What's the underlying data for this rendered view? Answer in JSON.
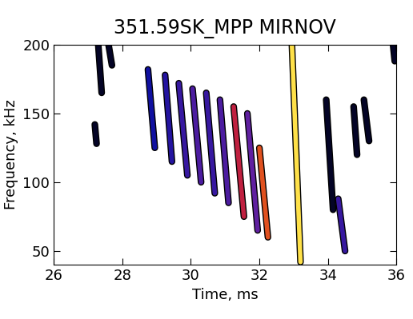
{
  "chart_data": {
    "type": "spectrogram",
    "title": "351.59SK_MPP MIRNOV",
    "x_label": "Time, ms",
    "y_label": "Frequency, kHz",
    "xlim": [
      26,
      36
    ],
    "xticks": [
      26,
      28,
      30,
      32,
      34,
      36
    ],
    "ylim": [
      40,
      200
    ],
    "yticks": [
      50,
      100,
      150,
      200
    ],
    "amplitude_range": [
      0,
      1
    ],
    "chirps": [
      {
        "time": [
          27.2,
          27.25
        ],
        "frequency": [
          142,
          128
        ],
        "amplitude": 0.05
      },
      {
        "time": [
          27.3,
          27.4
        ],
        "frequency": [
          200,
          165
        ],
        "amplitude": 0.05
      },
      {
        "time": [
          27.6,
          27.7
        ],
        "frequency": [
          200,
          185
        ],
        "amplitude": 0.05
      },
      {
        "time": [
          28.75,
          28.95
        ],
        "frequency": [
          182,
          125
        ],
        "amplitude": 0.2
      },
      {
        "time": [
          29.25,
          29.45
        ],
        "frequency": [
          178,
          115
        ],
        "amplitude": 0.25
      },
      {
        "time": [
          29.65,
          29.9
        ],
        "frequency": [
          172,
          105
        ],
        "amplitude": 0.3
      },
      {
        "time": [
          30.05,
          30.3
        ],
        "frequency": [
          168,
          100
        ],
        "amplitude": 0.35
      },
      {
        "time": [
          30.45,
          30.7
        ],
        "frequency": [
          165,
          92
        ],
        "amplitude": 0.3
      },
      {
        "time": [
          30.85,
          31.1
        ],
        "frequency": [
          160,
          85
        ],
        "amplitude": 0.35
      },
      {
        "time": [
          31.25,
          31.55
        ],
        "frequency": [
          155,
          75
        ],
        "amplitude": 0.6
      },
      {
        "time": [
          31.65,
          31.95
        ],
        "frequency": [
          150,
          65
        ],
        "amplitude": 0.4
      },
      {
        "time": [
          32.0,
          32.25
        ],
        "frequency": [
          125,
          60
        ],
        "amplitude": 0.7
      },
      {
        "time": [
          32.95,
          33.2
        ],
        "frequency": [
          200,
          42
        ],
        "amplitude": 0.95
      },
      {
        "time": [
          33.95,
          34.15
        ],
        "frequency": [
          160,
          80
        ],
        "amplitude": 0.05
      },
      {
        "time": [
          34.3,
          34.5
        ],
        "frequency": [
          88,
          50
        ],
        "amplitude": 0.3
      },
      {
        "time": [
          34.75,
          34.85
        ],
        "frequency": [
          155,
          120
        ],
        "amplitude": 0.05
      },
      {
        "time": [
          35.05,
          35.2
        ],
        "frequency": [
          160,
          130
        ],
        "amplitude": 0.05
      },
      {
        "time": [
          35.9,
          35.95
        ],
        "frequency": [
          200,
          188
        ],
        "amplitude": 0.05
      }
    ]
  }
}
